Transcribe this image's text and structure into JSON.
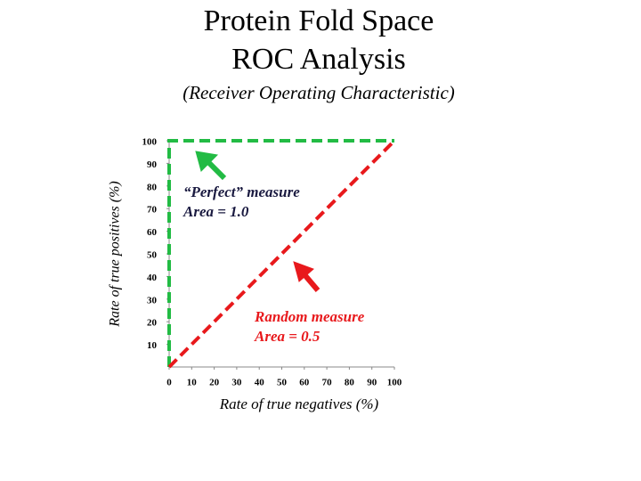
{
  "chart_data": {
    "type": "line",
    "title": [
      "Protein Fold Space",
      "ROC Analysis"
    ],
    "subtitle": "(Receiver Operating Characteristic)",
    "x_label": "Rate of true negatives (%)",
    "y_label": "Rate of true positives (%)",
    "xlim": [
      0,
      100
    ],
    "ylim": [
      0,
      100
    ],
    "xticks": [
      0,
      10,
      20,
      30,
      40,
      50,
      60,
      70,
      80,
      90,
      100
    ],
    "yticks": [
      10,
      20,
      30,
      40,
      50,
      60,
      70,
      80,
      90,
      100
    ],
    "series": [
      {
        "name": "Perfect",
        "color": "#22bb44",
        "x": [
          0,
          0,
          100
        ],
        "values": [
          0,
          100,
          100
        ]
      },
      {
        "name": "Random",
        "color": "#e8191c",
        "x": [
          0,
          100
        ],
        "values": [
          0,
          100
        ]
      }
    ],
    "annotations": [
      {
        "lines": [
          "“Perfect” measure",
          "Area = 1.0"
        ],
        "color": "#1a1a40"
      },
      {
        "lines": [
          "Random measure",
          "Area = 0.5"
        ],
        "color": "#e8191c"
      }
    ]
  }
}
